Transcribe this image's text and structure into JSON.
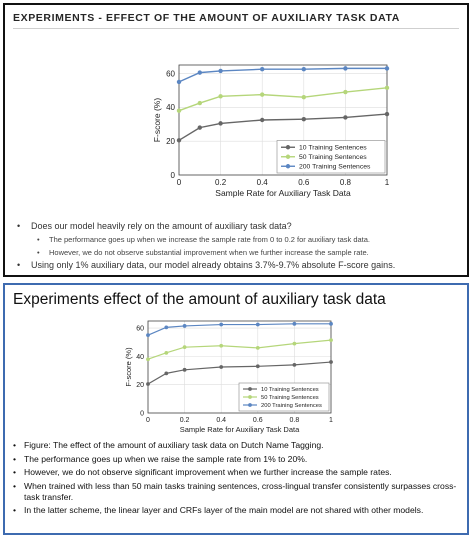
{
  "top_slide": {
    "title": "EXPERIMENTS - EFFECT OF THE AMOUNT OF AUXILIARY TASK DATA",
    "bullets": {
      "q1": "Does our model heavily rely on the amount of auxiliary task data?",
      "s1": "The performance goes up when we increase the sample rate from 0 to 0.2 for auxiliary task data.",
      "s2": "However, we do not observe substantial improvement when we further increase the sample rate.",
      "q2": "Using only 1% auxiliary data, our model already obtains 3.7%-9.7% absolute F-score gains."
    }
  },
  "bottom_slide": {
    "title": "Experiments effect of the amount of auxiliary task data",
    "bullets": {
      "b1": "Figure: The effect of the amount of auxiliary task data on Dutch Name Tagging.",
      "b2": "The performance goes up when we raise the sample rate from 1% to 20%.",
      "b3": "However, we do not observe significant improvement when we further increase the sample rates.",
      "b4": "When trained with less than 50 main tasks training sentences, cross-lingual transfer consistently surpasses cross-task transfer.",
      "b5": "In the latter scheme, the linear layer and CRFs layer of the main model are not shared with other models."
    }
  },
  "colors": {
    "frame_top": "#111111",
    "frame_bottom": "#3e6bb0"
  },
  "chart_data": {
    "type": "line",
    "xlabel": "Sample Rate for Auxiliary Task Data",
    "ylabel": "F-score (%)",
    "xlim": [
      0,
      1
    ],
    "ylim": [
      0,
      65
    ],
    "xticks": [
      "0",
      "0.2",
      "0.4",
      "0.6",
      "0.8",
      "1"
    ],
    "yticks": [
      "0",
      "20",
      "40",
      "60"
    ],
    "legend_position": "bottom-right",
    "x": [
      0,
      0.1,
      0.2,
      0.4,
      0.6,
      0.8,
      1
    ],
    "series": [
      {
        "name": "10 Training Sentences",
        "color": "#666666",
        "values": [
          20.5,
          28,
          30.5,
          32.5,
          33,
          34,
          36
        ]
      },
      {
        "name": "50 Training Sentences",
        "color": "#b5d67a",
        "values": [
          38,
          42.5,
          46.5,
          47.5,
          46,
          49,
          51.5
        ]
      },
      {
        "name": "200 Training Sentences",
        "color": "#5b86c2",
        "values": [
          55,
          60.5,
          61.5,
          62.5,
          62.5,
          63,
          63
        ]
      }
    ]
  }
}
